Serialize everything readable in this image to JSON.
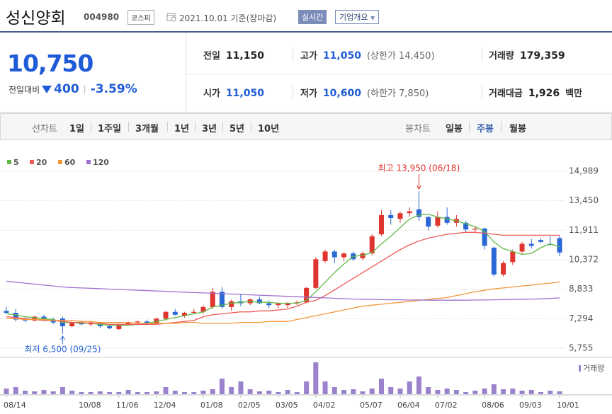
{
  "header": {
    "title": "성신양회",
    "code": "004980",
    "market": "코스피",
    "date": "2021.10.01 기준(장마감)",
    "realtime": "실시간",
    "overview": "기업개요"
  },
  "price": {
    "current": "10,750",
    "change_label": "전일대비",
    "change": "400",
    "change_pct": "-3.59%"
  },
  "stats": [
    {
      "label": "전일",
      "value": "11,150"
    },
    {
      "label": "고가",
      "value": "11,050",
      "note": "(상한가 14,450)"
    },
    {
      "label": "거래량",
      "value": "179,359"
    },
    {
      "label": "시가",
      "value": "11,050"
    },
    {
      "label": "저가",
      "value": "10,600",
      "note": "(하한가 7,850)"
    },
    {
      "label": "거래대금",
      "value": "1,926",
      "unit": "백만"
    }
  ],
  "tabs": {
    "line_label": "선차트",
    "line_items": [
      "1일",
      "1주일",
      "3개월",
      "1년",
      "3년",
      "5년",
      "10년"
    ],
    "candle_label": "봉차트",
    "candle_items": [
      "일봉",
      "주봉",
      "월봉"
    ]
  },
  "chart_data": {
    "type": "candlestick",
    "categories": [
      "08/14",
      null,
      null,
      null,
      null,
      null,
      null,
      null,
      "10/08",
      null,
      null,
      null,
      "11/06",
      null,
      null,
      null,
      "12/04",
      null,
      null,
      null,
      null,
      "01/08",
      null,
      null,
      null,
      "02/05",
      null,
      null,
      null,
      "03/05",
      null,
      null,
      null,
      "04/02",
      null,
      null,
      null,
      null,
      "05/07",
      null,
      null,
      null,
      "06/04",
      null,
      null,
      null,
      "07/02",
      null,
      null,
      null,
      null,
      "08/06",
      null,
      null,
      null,
      "09/03",
      null,
      null,
      null,
      "10/01"
    ],
    "open": [
      7700,
      7600,
      7250,
      7200,
      7400,
      7250,
      7300,
      6900,
      7100,
      7000,
      7050,
      6900,
      6750,
      7000,
      7100,
      7150,
      7050,
      7300,
      7650,
      7450,
      7600,
      7650,
      7900,
      8700,
      7900,
      8200,
      8100,
      8300,
      8100,
      8000,
      8000,
      8100,
      8150,
      8900,
      10300,
      10800,
      10500,
      10700,
      10450,
      10700,
      11700,
      12700,
      12500,
      12800,
      13000,
      12600,
      12150,
      12600,
      12300,
      12300,
      11950,
      12000,
      11000,
      9600,
      10250,
      10800,
      11200,
      11400,
      11200,
      11500
    ],
    "high": [
      7900,
      7800,
      7400,
      7450,
      7500,
      7350,
      7400,
      7150,
      7200,
      7150,
      7100,
      7000,
      7050,
      7150,
      7200,
      7250,
      7350,
      7700,
      7800,
      7650,
      7800,
      8000,
      8900,
      8950,
      8300,
      8600,
      8350,
      8450,
      8250,
      8150,
      8150,
      8250,
      8950,
      10500,
      10900,
      10900,
      10750,
      10800,
      10800,
      11700,
      12950,
      12950,
      12900,
      13100,
      13950,
      12650,
      12900,
      13100,
      12700,
      12400,
      12100,
      12050,
      11050,
      10300,
      10900,
      11300,
      11450,
      11500,
      11600,
      11650
    ],
    "low": [
      7550,
      7150,
      7100,
      7150,
      7200,
      7000,
      6500,
      6850,
      6950,
      6900,
      6800,
      6750,
      6700,
      6950,
      7000,
      6950,
      7000,
      7200,
      7450,
      7350,
      7550,
      7550,
      7800,
      7800,
      7700,
      7950,
      8000,
      8050,
      7850,
      7850,
      7850,
      8000,
      8100,
      8850,
      10200,
      10200,
      10300,
      10300,
      10350,
      10600,
      11600,
      12200,
      12300,
      12600,
      12400,
      11900,
      12050,
      12200,
      12100,
      11800,
      11800,
      10900,
      9500,
      9500,
      10100,
      10700,
      10950,
      11250,
      11100,
      10550
    ],
    "close": [
      7600,
      7250,
      7200,
      7400,
      7250,
      7100,
      6900,
      7100,
      7000,
      7100,
      6900,
      6800,
      7000,
      7100,
      7150,
      7050,
      7300,
      7650,
      7500,
      7600,
      7650,
      7900,
      8700,
      7900,
      8200,
      8100,
      8300,
      8100,
      8000,
      8100,
      8100,
      8150,
      8900,
      10400,
      10800,
      10500,
      10700,
      10400,
      10700,
      11600,
      12700,
      12550,
      12800,
      12900,
      12600,
      12100,
      12600,
      12300,
      12500,
      11950,
      12000,
      11100,
      9600,
      10200,
      10800,
      11200,
      11100,
      11300,
      11150,
      10750
    ],
    "up_color": "#e0352f",
    "down_color": "#2b67d6",
    "ylim": [
      5755,
      14989
    ],
    "yticks": [
      {
        "value": 14989,
        "label": "14,989"
      },
      {
        "value": 13450,
        "label": "13,450"
      },
      {
        "value": 11911,
        "label": "11,911"
      },
      {
        "value": 10372,
        "label": "10,372"
      },
      {
        "value": 8833,
        "label": "8,833"
      },
      {
        "value": 7294,
        "label": "7,294"
      },
      {
        "value": 5755,
        "label": "5,755"
      }
    ],
    "grid": true,
    "moving_averages": [
      {
        "name": "5",
        "color": "#5fba46",
        "values": [
          7550,
          7500,
          7400,
          7350,
          7300,
          7250,
          7100,
          7100,
          7050,
          7050,
          7000,
          6950,
          6950,
          6950,
          7000,
          7050,
          7150,
          7250,
          7350,
          7450,
          7550,
          7650,
          7900,
          8000,
          8100,
          8150,
          8200,
          8150,
          8150,
          8100,
          8100,
          8100,
          8250,
          8700,
          9200,
          9700,
          10150,
          10550,
          10600,
          10750,
          11200,
          11600,
          12050,
          12500,
          12700,
          12750,
          12600,
          12500,
          12400,
          12250,
          12100,
          11850,
          11300,
          10950,
          10800,
          10650,
          10700,
          11000,
          11200,
          11050
        ]
      },
      {
        "name": "20",
        "color": "#ee5b57",
        "values": [
          7400,
          7350,
          7300,
          7250,
          7200,
          7200,
          7150,
          7100,
          7100,
          7050,
          7050,
          7000,
          7000,
          7000,
          7000,
          7000,
          7000,
          7050,
          7100,
          7150,
          7200,
          7400,
          7500,
          7550,
          7600,
          7650,
          7650,
          7700,
          7700,
          7750,
          7800,
          7950,
          8150,
          8250,
          8500,
          8800,
          9100,
          9400,
          9700,
          10000,
          10300,
          10600,
          10900,
          11150,
          11350,
          11500,
          11600,
          11700,
          11750,
          11800,
          11800,
          11750,
          11700,
          11650,
          11650,
          11650,
          11650,
          11650,
          11650,
          11650
        ]
      },
      {
        "name": "60",
        "color": "#f2973a",
        "values": [
          7300,
          7300,
          7250,
          7250,
          7250,
          7200,
          7200,
          7200,
          7150,
          7150,
          7100,
          7100,
          7100,
          7100,
          7050,
          7050,
          7050,
          7050,
          7050,
          7100,
          7100,
          7050,
          7050,
          7050,
          7050,
          7100,
          7100,
          7100,
          7150,
          7150,
          7150,
          7250,
          7350,
          7450,
          7550,
          7650,
          7750,
          7850,
          7950,
          8000,
          8050,
          8100,
          8150,
          8200,
          8250,
          8300,
          8350,
          8400,
          8500,
          8600,
          8700,
          8780,
          8850,
          8900,
          8950,
          9000,
          9050,
          9100,
          9150,
          9220
        ]
      },
      {
        "name": "120",
        "color": "#a070d0",
        "values": [
          9250,
          9200,
          9150,
          9100,
          9050,
          9000,
          8950,
          8920,
          8900,
          8880,
          8860,
          8840,
          8820,
          8800,
          8780,
          8760,
          8740,
          8720,
          8700,
          8680,
          8660,
          8640,
          8620,
          8600,
          8580,
          8560,
          8540,
          8520,
          8500,
          8480,
          8460,
          8440,
          8420,
          8400,
          8380,
          8360,
          8340,
          8320,
          8310,
          8300,
          8290,
          8280,
          8280,
          8270,
          8270,
          8260,
          8260,
          8260,
          8260,
          8260,
          8270,
          8270,
          8280,
          8290,
          8300,
          8310,
          8320,
          8330,
          8350,
          8380
        ]
      }
    ],
    "volume": {
      "name": "거래량",
      "color": "#9b82cc",
      "ylim": [
        0,
        5000000
      ],
      "values": [
        800000,
        1000000,
        500000,
        400000,
        600000,
        400000,
        1000000,
        500000,
        300000,
        300000,
        400000,
        300000,
        300000,
        600000,
        300000,
        300000,
        400000,
        1000000,
        500000,
        300000,
        300000,
        500000,
        700000,
        2200000,
        1000000,
        1800000,
        700000,
        400000,
        500000,
        300000,
        600000,
        300000,
        1800000,
        4500000,
        1800000,
        1000000,
        600000,
        700000,
        400000,
        800000,
        2200000,
        1000000,
        800000,
        1800000,
        2500000,
        1000000,
        600000,
        800000,
        600000,
        300000,
        500000,
        800000,
        1400000,
        700000,
        800000,
        500000,
        600000,
        300000,
        500000,
        400000
      ]
    },
    "annotations": [
      {
        "label": "최고 13,950 (06/18)",
        "value": 13950,
        "kind": "high",
        "color": "#e0352f"
      },
      {
        "label": "최저 6,500 (09/25)",
        "value": 6500,
        "kind": "low",
        "color": "#2b67d6"
      }
    ]
  }
}
